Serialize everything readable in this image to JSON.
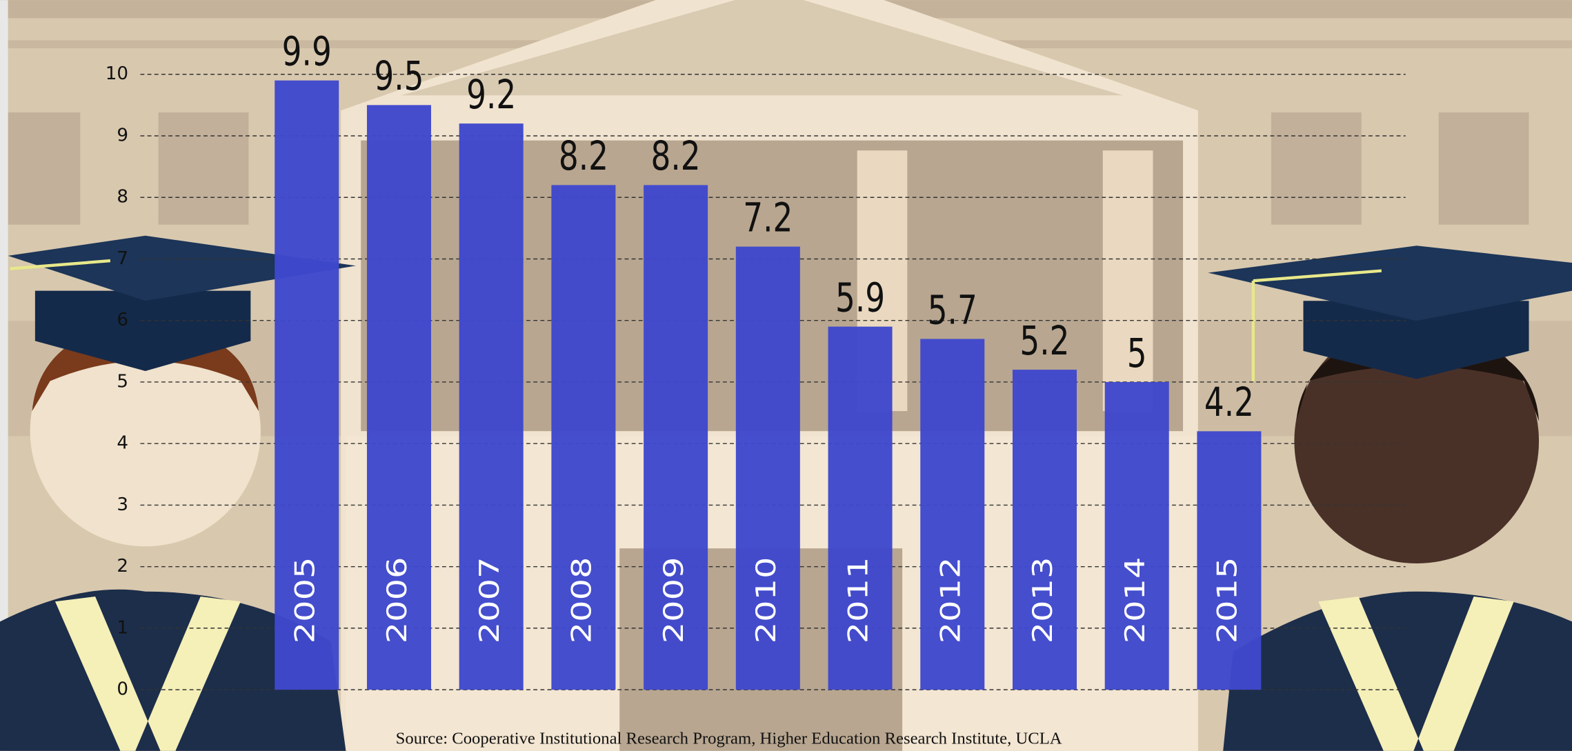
{
  "chart_data": {
    "type": "bar",
    "categories": [
      "2005",
      "2006",
      "2007",
      "2008",
      "2009",
      "2010",
      "2011",
      "2012",
      "2013",
      "2014",
      "2015"
    ],
    "values": [
      9.9,
      9.5,
      9.2,
      8.2,
      8.2,
      7.2,
      5.9,
      5.7,
      5.2,
      5,
      4.2
    ],
    "color": "#3f48cc",
    "ylim": [
      0,
      10
    ],
    "yticks": [
      0,
      1,
      2,
      3,
      4,
      5,
      6,
      7,
      8,
      9,
      10
    ],
    "grid": true,
    "source": "Source: Cooperative Institutional Research Program, Higher Education Research Institute, UCLA"
  }
}
